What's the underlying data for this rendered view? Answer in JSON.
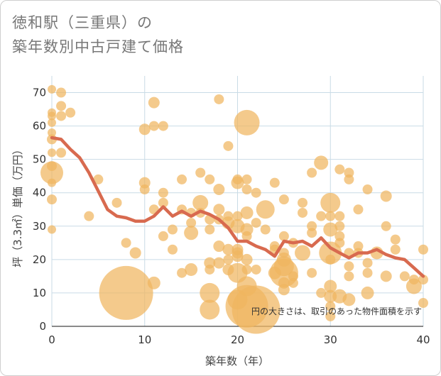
{
  "title_lines": [
    "徳和駅（三重県）の",
    "築年数別中古戸建て価格"
  ],
  "chart_data": {
    "type": "scatter",
    "title": "徳和駅（三重県）の 築年数別中古戸建て価格",
    "xlabel": "築年数（年）",
    "ylabel": "坪（3.3㎡）単価（万円）",
    "xlim": [
      0,
      40
    ],
    "ylim": [
      0,
      75
    ],
    "xticks": [
      0,
      10,
      20,
      30,
      40
    ],
    "yticks": [
      0,
      10,
      20,
      30,
      40,
      50,
      60,
      70
    ],
    "grid": true,
    "note": "円の大きさは、取引のあった物件面積を示す",
    "colors": {
      "bubble": "#f0b660",
      "line": "#d86a4f",
      "grid": "#c9dbe6"
    },
    "bubbles": [
      {
        "x": 0,
        "y": 71,
        "s": 6
      },
      {
        "x": 0,
        "y": 64,
        "s": 6
      },
      {
        "x": 0,
        "y": 63,
        "s": 6
      },
      {
        "x": 0,
        "y": 61,
        "s": 6
      },
      {
        "x": 0,
        "y": 58,
        "s": 6
      },
      {
        "x": 0,
        "y": 56,
        "s": 7
      },
      {
        "x": 0,
        "y": 52,
        "s": 6
      },
      {
        "x": 0,
        "y": 48,
        "s": 7
      },
      {
        "x": 0,
        "y": 46,
        "s": 16
      },
      {
        "x": 0,
        "y": 43,
        "s": 6
      },
      {
        "x": 0,
        "y": 38,
        "s": 7
      },
      {
        "x": 0,
        "y": 29,
        "s": 6
      },
      {
        "x": 1,
        "y": 70,
        "s": 7
      },
      {
        "x": 1,
        "y": 66,
        "s": 7
      },
      {
        "x": 1,
        "y": 63,
        "s": 7
      },
      {
        "x": 1,
        "y": 52,
        "s": 7
      },
      {
        "x": 2,
        "y": 64,
        "s": 7
      },
      {
        "x": 4,
        "y": 33,
        "s": 7
      },
      {
        "x": 5,
        "y": 44,
        "s": 7
      },
      {
        "x": 7,
        "y": 37,
        "s": 7
      },
      {
        "x": 8,
        "y": 25,
        "s": 7
      },
      {
        "x": 8,
        "y": 10,
        "s": 38
      },
      {
        "x": 9,
        "y": 22,
        "s": 8
      },
      {
        "x": 10,
        "y": 59,
        "s": 8
      },
      {
        "x": 10,
        "y": 43,
        "s": 8
      },
      {
        "x": 10,
        "y": 41,
        "s": 7
      },
      {
        "x": 11,
        "y": 67,
        "s": 8
      },
      {
        "x": 11,
        "y": 60,
        "s": 7
      },
      {
        "x": 11,
        "y": 35,
        "s": 7
      },
      {
        "x": 11,
        "y": 13,
        "s": 9
      },
      {
        "x": 12,
        "y": 60,
        "s": 7
      },
      {
        "x": 12,
        "y": 40,
        "s": 7
      },
      {
        "x": 12,
        "y": 37,
        "s": 7
      },
      {
        "x": 12,
        "y": 27,
        "s": 7
      },
      {
        "x": 13,
        "y": 29,
        "s": 7
      },
      {
        "x": 13,
        "y": 23,
        "s": 7
      },
      {
        "x": 14,
        "y": 44,
        "s": 7
      },
      {
        "x": 14,
        "y": 35,
        "s": 7
      },
      {
        "x": 14,
        "y": 16,
        "s": 7
      },
      {
        "x": 15,
        "y": 34,
        "s": 7
      },
      {
        "x": 15,
        "y": 31,
        "s": 7
      },
      {
        "x": 15,
        "y": 28,
        "s": 10
      },
      {
        "x": 15,
        "y": 17,
        "s": 9
      },
      {
        "x": 16,
        "y": 46,
        "s": 7
      },
      {
        "x": 16,
        "y": 37,
        "s": 11
      },
      {
        "x": 16,
        "y": 34,
        "s": 7
      },
      {
        "x": 17,
        "y": 44,
        "s": 7
      },
      {
        "x": 17,
        "y": 32,
        "s": 7
      },
      {
        "x": 17,
        "y": 29,
        "s": 7
      },
      {
        "x": 17,
        "y": 19,
        "s": 8
      },
      {
        "x": 17,
        "y": 17,
        "s": 7
      },
      {
        "x": 17,
        "y": 10,
        "s": 14
      },
      {
        "x": 17,
        "y": 5,
        "s": 14
      },
      {
        "x": 18,
        "y": 68,
        "s": 7
      },
      {
        "x": 18,
        "y": 41,
        "s": 8
      },
      {
        "x": 18,
        "y": 35,
        "s": 8
      },
      {
        "x": 18,
        "y": 32,
        "s": 7
      },
      {
        "x": 18,
        "y": 24,
        "s": 8
      },
      {
        "x": 18,
        "y": 19,
        "s": 8
      },
      {
        "x": 19,
        "y": 54,
        "s": 7
      },
      {
        "x": 19,
        "y": 33,
        "s": 7
      },
      {
        "x": 19,
        "y": 31,
        "s": 9
      },
      {
        "x": 19,
        "y": 23,
        "s": 8
      },
      {
        "x": 19,
        "y": 20,
        "s": 7
      },
      {
        "x": 19,
        "y": 17,
        "s": 8
      },
      {
        "x": 20,
        "y": 44,
        "s": 7
      },
      {
        "x": 20,
        "y": 43,
        "s": 9
      },
      {
        "x": 20,
        "y": 33,
        "s": 7
      },
      {
        "x": 20,
        "y": 30,
        "s": 10
      },
      {
        "x": 20,
        "y": 23,
        "s": 8
      },
      {
        "x": 20,
        "y": 22,
        "s": 8
      },
      {
        "x": 20,
        "y": 21,
        "s": 8
      },
      {
        "x": 20,
        "y": 16,
        "s": 14
      },
      {
        "x": 20,
        "y": 8,
        "s": 14
      },
      {
        "x": 21,
        "y": 61,
        "s": 18
      },
      {
        "x": 21,
        "y": 44,
        "s": 7
      },
      {
        "x": 21,
        "y": 41,
        "s": 7
      },
      {
        "x": 21,
        "y": 34,
        "s": 9
      },
      {
        "x": 21,
        "y": 29,
        "s": 9
      },
      {
        "x": 21,
        "y": 27,
        "s": 7
      },
      {
        "x": 21,
        "y": 20,
        "s": 8
      },
      {
        "x": 21,
        "y": 17,
        "s": 7
      },
      {
        "x": 21,
        "y": 12,
        "s": 14
      },
      {
        "x": 21,
        "y": 6,
        "s": 30
      },
      {
        "x": 22,
        "y": 40,
        "s": 7
      },
      {
        "x": 22,
        "y": 31,
        "s": 7
      },
      {
        "x": 22,
        "y": 17,
        "s": 7
      },
      {
        "x": 22,
        "y": 5,
        "s": 34
      },
      {
        "x": 23,
        "y": 35,
        "s": 13
      },
      {
        "x": 23,
        "y": 29,
        "s": 7
      },
      {
        "x": 24,
        "y": 43,
        "s": 7
      },
      {
        "x": 24,
        "y": 24,
        "s": 7
      },
      {
        "x": 24,
        "y": 23,
        "s": 7
      },
      {
        "x": 24,
        "y": 16,
        "s": 9
      },
      {
        "x": 25,
        "y": 38,
        "s": 7
      },
      {
        "x": 25,
        "y": 27,
        "s": 7
      },
      {
        "x": 25,
        "y": 22,
        "s": 7
      },
      {
        "x": 25,
        "y": 20,
        "s": 10
      },
      {
        "x": 25,
        "y": 18,
        "s": 14
      },
      {
        "x": 25,
        "y": 16,
        "s": 20
      },
      {
        "x": 25,
        "y": 13,
        "s": 8
      },
      {
        "x": 25,
        "y": 11,
        "s": 8
      },
      {
        "x": 26,
        "y": 25,
        "s": 7
      },
      {
        "x": 26,
        "y": 15,
        "s": 7
      },
      {
        "x": 26,
        "y": 13,
        "s": 7
      },
      {
        "x": 27,
        "y": 37,
        "s": 7
      },
      {
        "x": 27,
        "y": 34,
        "s": 7
      },
      {
        "x": 27,
        "y": 22,
        "s": 11
      },
      {
        "x": 28,
        "y": 46,
        "s": 7
      },
      {
        "x": 28,
        "y": 30,
        "s": 7
      },
      {
        "x": 28,
        "y": 28,
        "s": 7
      },
      {
        "x": 28,
        "y": 16,
        "s": 7
      },
      {
        "x": 29,
        "y": 49,
        "s": 10
      },
      {
        "x": 29,
        "y": 33,
        "s": 7
      },
      {
        "x": 29,
        "y": 10,
        "s": 7
      },
      {
        "x": 30,
        "y": 37,
        "s": 14
      },
      {
        "x": 30,
        "y": 33,
        "s": 7
      },
      {
        "x": 30,
        "y": 29,
        "s": 10
      },
      {
        "x": 30,
        "y": 22,
        "s": 16
      },
      {
        "x": 30,
        "y": 20,
        "s": 7
      },
      {
        "x": 30,
        "y": 12,
        "s": 9
      },
      {
        "x": 30,
        "y": 9,
        "s": 9
      },
      {
        "x": 30,
        "y": 6,
        "s": 7
      },
      {
        "x": 30,
        "y": 3,
        "s": 7
      },
      {
        "x": 31,
        "y": 47,
        "s": 7
      },
      {
        "x": 31,
        "y": 33,
        "s": 7
      },
      {
        "x": 31,
        "y": 30,
        "s": 7
      },
      {
        "x": 31,
        "y": 27,
        "s": 7
      },
      {
        "x": 31,
        "y": 25,
        "s": 7
      },
      {
        "x": 31,
        "y": 9,
        "s": 10
      },
      {
        "x": 32,
        "y": 46,
        "s": 7
      },
      {
        "x": 32,
        "y": 44,
        "s": 7
      },
      {
        "x": 32,
        "y": 22,
        "s": 7
      },
      {
        "x": 32,
        "y": 18,
        "s": 7
      },
      {
        "x": 32,
        "y": 15,
        "s": 7
      },
      {
        "x": 32,
        "y": 8,
        "s": 9
      },
      {
        "x": 33,
        "y": 35,
        "s": 7
      },
      {
        "x": 33,
        "y": 24,
        "s": 7
      },
      {
        "x": 33,
        "y": 22,
        "s": 7
      },
      {
        "x": 34,
        "y": 41,
        "s": 7
      },
      {
        "x": 34,
        "y": 19,
        "s": 7
      },
      {
        "x": 34,
        "y": 16,
        "s": 7
      },
      {
        "x": 34,
        "y": 10,
        "s": 9
      },
      {
        "x": 35,
        "y": 22,
        "s": 9
      },
      {
        "x": 36,
        "y": 39,
        "s": 8
      },
      {
        "x": 36,
        "y": 30,
        "s": 7
      },
      {
        "x": 36,
        "y": 15,
        "s": 8
      },
      {
        "x": 37,
        "y": 26,
        "s": 7
      },
      {
        "x": 37,
        "y": 23,
        "s": 7
      },
      {
        "x": 38,
        "y": 15,
        "s": 7
      },
      {
        "x": 39,
        "y": 14,
        "s": 7
      },
      {
        "x": 39,
        "y": 12,
        "s": 11
      },
      {
        "x": 40,
        "y": 23,
        "s": 7
      },
      {
        "x": 40,
        "y": 14,
        "s": 7
      },
      {
        "x": 40,
        "y": 7,
        "s": 7
      }
    ],
    "trend": {
      "x": [
        0,
        1,
        2,
        3,
        4,
        5,
        6,
        7,
        8,
        9,
        10,
        11,
        12,
        13,
        14,
        15,
        16,
        17,
        18,
        19,
        20,
        21,
        22,
        23,
        24,
        25,
        26,
        27,
        28,
        29,
        30,
        31,
        32,
        33,
        34,
        35,
        36,
        37,
        38,
        39,
        40
      ],
      "y": [
        56.5,
        56,
        53,
        50.5,
        46,
        40.5,
        35,
        33,
        32.5,
        31.5,
        31.5,
        33,
        35.8,
        33,
        34.5,
        33,
        34.5,
        33.5,
        32,
        29.5,
        25.5,
        25.5,
        24,
        23,
        21,
        25.5,
        25,
        25.5,
        24,
        26.5,
        23.5,
        22,
        20.5,
        22,
        22,
        23,
        21.5,
        20.5,
        20,
        17.5,
        15
      ]
    }
  }
}
